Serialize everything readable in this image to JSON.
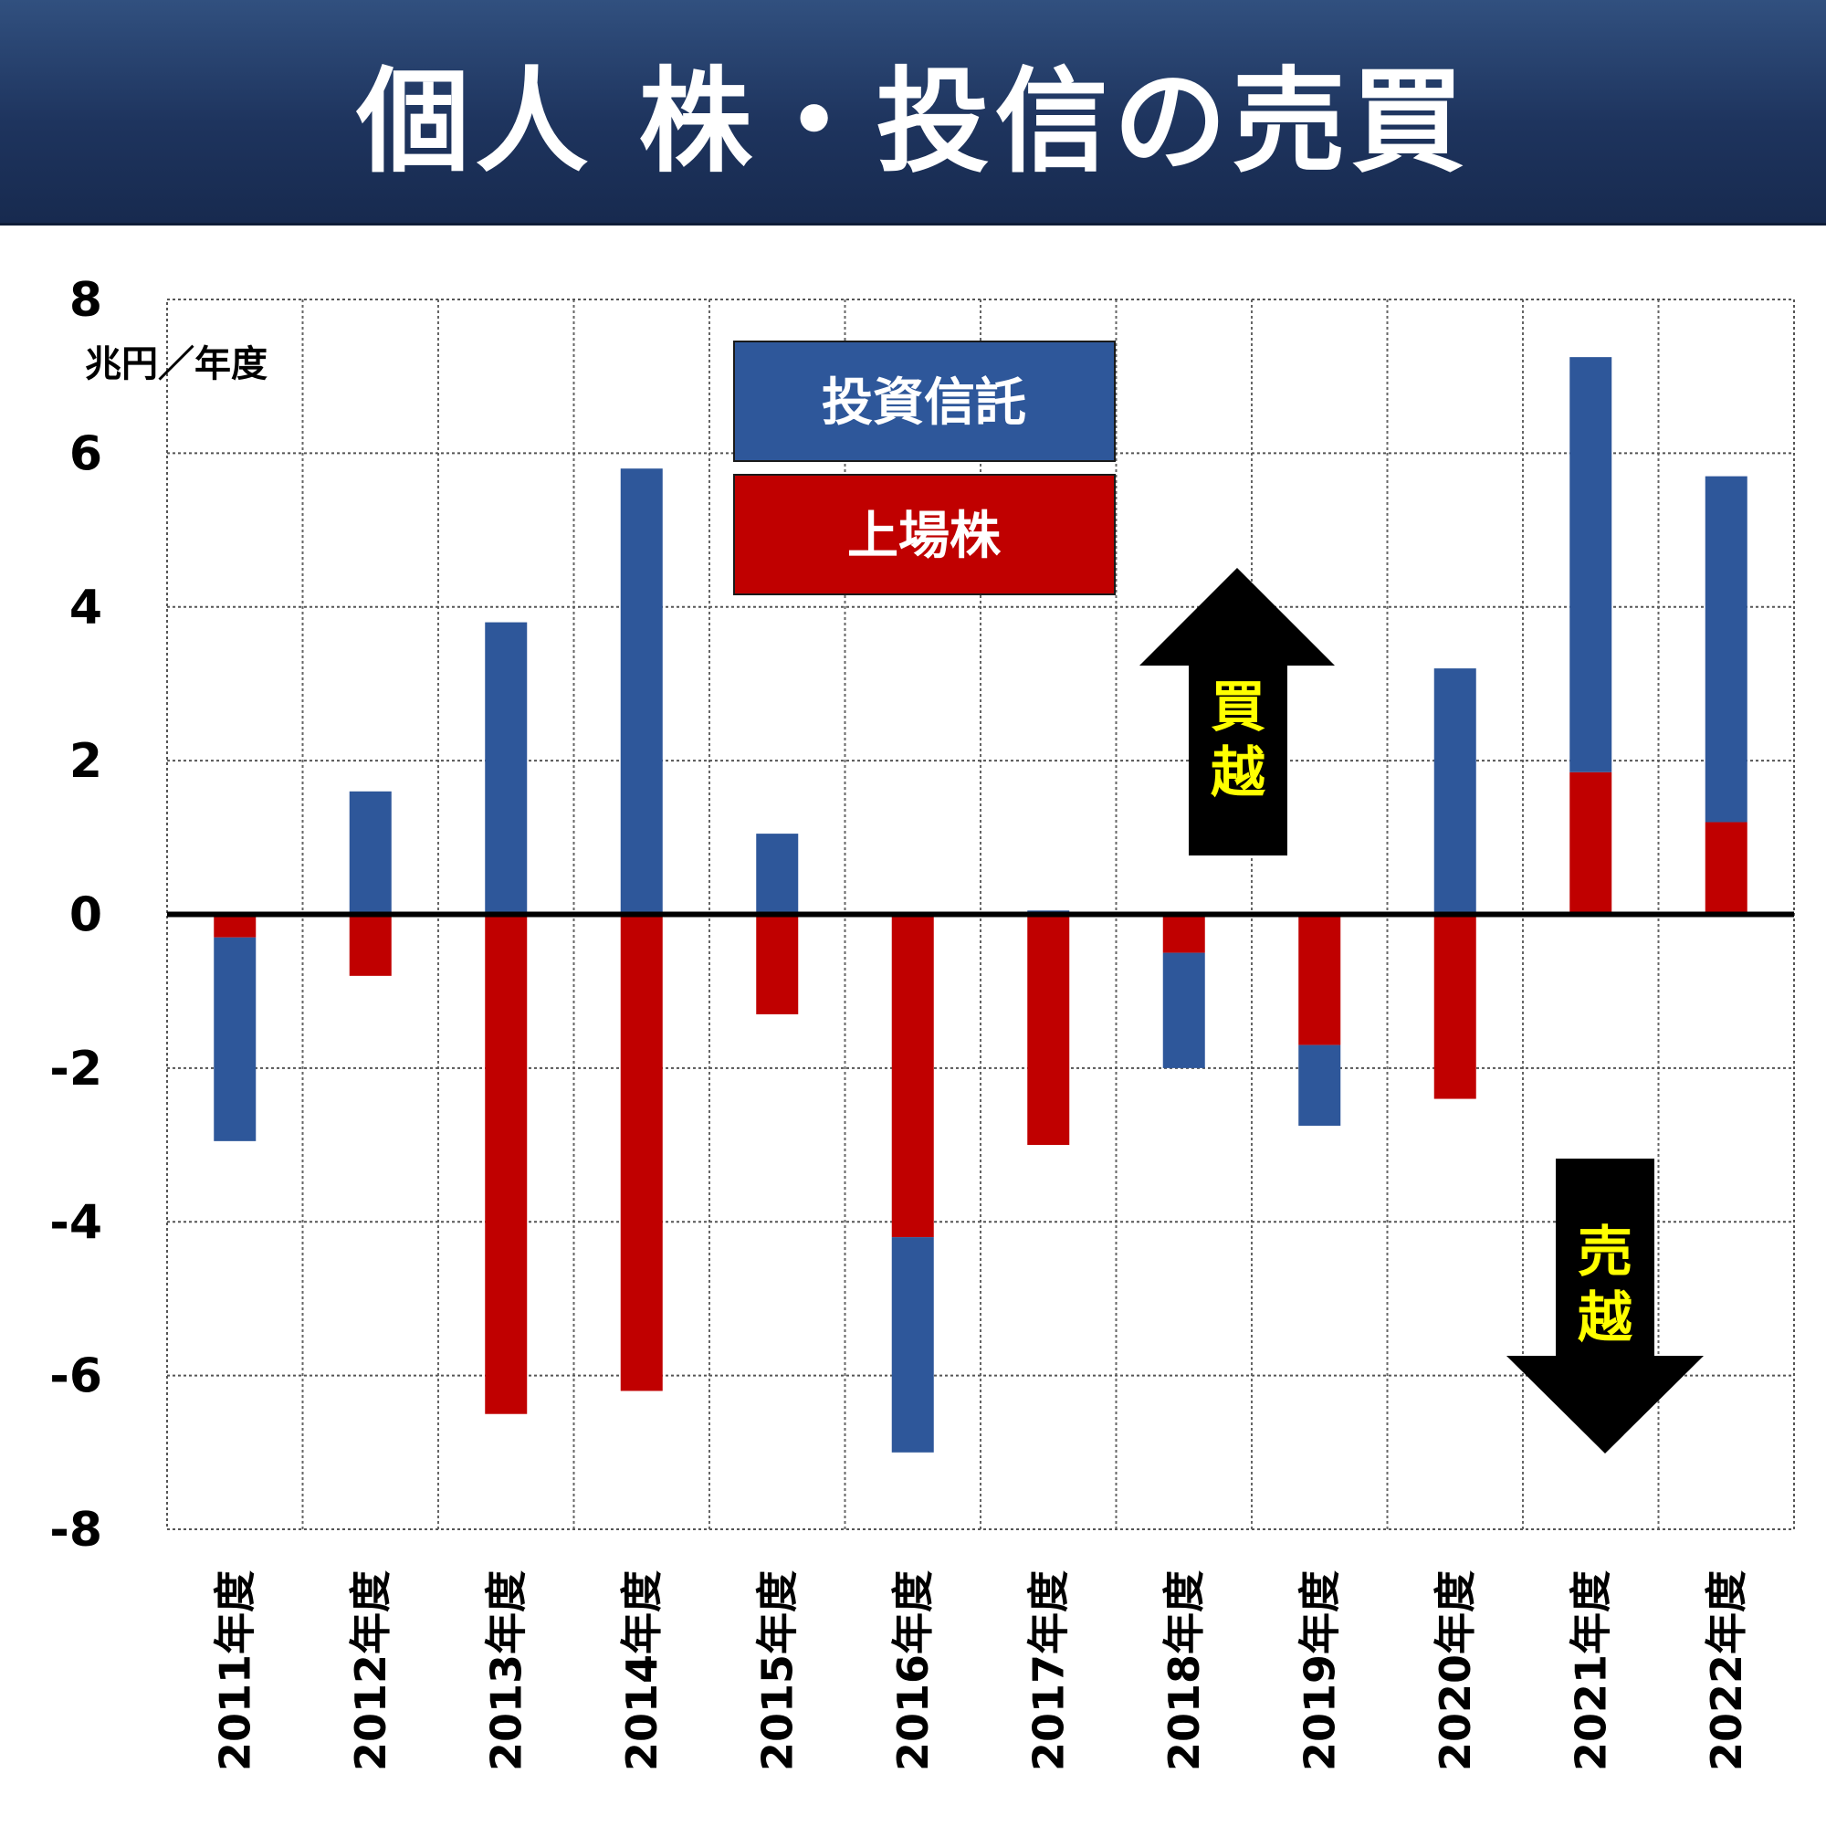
{
  "header": {
    "title": "個人 株・投信の売買"
  },
  "chart_data": {
    "type": "bar",
    "stacked": true,
    "title": "個人 株・投信の売買",
    "unit_label": "兆円／年度",
    "categories": [
      "2011年度",
      "2012年度",
      "2013年度",
      "2014年度",
      "2015年度",
      "2016年度",
      "2017年度",
      "2018年度",
      "2019年度",
      "2020年度",
      "2021年度",
      "2022年度"
    ],
    "series": [
      {
        "name": "上場株",
        "color": "#c00000",
        "values": [
          -0.3,
          -0.8,
          -6.5,
          -6.2,
          -1.3,
          -4.2,
          -3.0,
          -0.5,
          -1.7,
          -2.4,
          1.85,
          1.2
        ]
      },
      {
        "name": "投資信託",
        "color": "#2e579a",
        "values": [
          -2.65,
          1.6,
          3.8,
          5.8,
          1.05,
          -2.8,
          0.05,
          -1.5,
          -1.05,
          3.2,
          5.4,
          4.5
        ]
      }
    ],
    "ylim": [
      -8,
      8
    ],
    "yticks": [
      8,
      6,
      4,
      2,
      0,
      -2,
      -4,
      -6,
      -8
    ],
    "grid": true,
    "legend_position": "top-center",
    "annotations": [
      {
        "label": "買越",
        "direction": "up"
      },
      {
        "label": "売越",
        "direction": "down"
      }
    ]
  }
}
